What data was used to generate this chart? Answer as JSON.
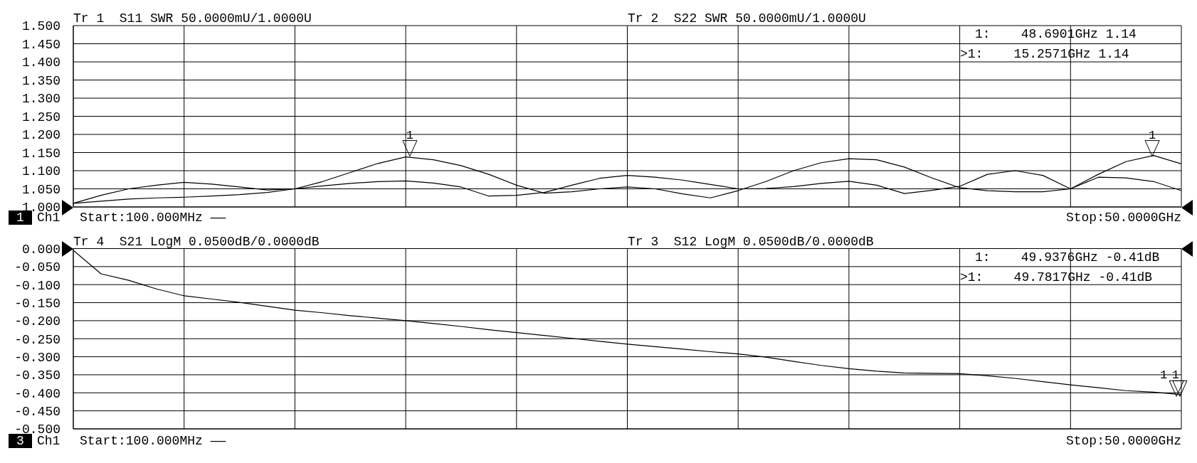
{
  "chart_data": [
    {
      "type": "line",
      "title": "Tr 1  S11 SWR 50.0000mU/1.0000U",
      "subtitle": "Tr 2  S22 SWR 50.0000mU/1.0000U",
      "categories": [
        null,
        null,
        null,
        null,
        null,
        null,
        null,
        null,
        null,
        null,
        null,
        null,
        null,
        null,
        null,
        null,
        null,
        null,
        null,
        null,
        null,
        null,
        null,
        null,
        null,
        null,
        null,
        null,
        null,
        null,
        null,
        null,
        null,
        null,
        null,
        null,
        null,
        null,
        null,
        null,
        null
      ],
      "series": [
        {
          "color": "#000000",
          "values": [
            1.01,
            1.016,
            1.022,
            1.025,
            1.027,
            1.03,
            1.034,
            1.04,
            1.05,
            1.07,
            1.095,
            1.12,
            1.138,
            1.13,
            1.114,
            1.09,
            1.06,
            1.038,
            1.042,
            1.05,
            1.055,
            1.05,
            1.036,
            1.025,
            1.045,
            1.07,
            1.1,
            1.122,
            1.133,
            1.13,
            1.11,
            1.08,
            1.053,
            1.045,
            1.042,
            1.042,
            1.05,
            1.09,
            1.125,
            1.142,
            1.119
          ]
        },
        {
          "color": "#000000",
          "values": [
            1.01,
            1.032,
            1.05,
            1.06,
            1.068,
            1.063,
            1.055,
            1.047,
            1.05,
            1.058,
            1.065,
            1.07,
            1.072,
            1.066,
            1.055,
            1.03,
            1.032,
            1.04,
            1.06,
            1.079,
            1.087,
            1.082,
            1.074,
            1.062,
            1.05,
            1.051,
            1.056,
            1.065,
            1.071,
            1.06,
            1.037,
            1.046,
            1.057,
            1.09,
            1.1,
            1.087,
            1.05,
            1.082,
            1.08,
            1.07,
            1.045
          ]
        }
      ],
      "ylim": [
        1.0,
        1.5
      ],
      "yticks": [
        {
          "value": 1.0,
          "label": "1.000"
        },
        {
          "value": 1.05,
          "label": "1.050"
        },
        {
          "value": 1.1,
          "label": "1.100"
        },
        {
          "value": 1.15,
          "label": "1.150"
        },
        {
          "value": 1.2,
          "label": "1.200"
        },
        {
          "value": 1.25,
          "label": "1.250"
        },
        {
          "value": 1.3,
          "label": "1.300"
        },
        {
          "value": 1.35,
          "label": "1.350"
        },
        {
          "value": 1.4,
          "label": "1.400"
        },
        {
          "value": 1.45,
          "label": "1.450"
        },
        {
          "value": 1.5,
          "label": "1.500"
        }
      ],
      "tick_labels": "y",
      "grid": true,
      "annotations": [
        "1",
        "Ch1",
        "Start:100.000MHz ——",
        "Stop:50.0000GHz",
        "1:    48.6901GHz 1.14",
        ">1:    15.2571GHz 1.14",
        {
          "text": "1",
          "y": 1.14
        },
        {
          "text": "1",
          "y": 1.14
        }
      ]
    },
    {
      "type": "line",
      "title": "Tr 4  S21 LogM 0.0500dB/0.0000dB",
      "subtitle": "Tr 3  S12 LogM 0.0500dB/0.0000dB",
      "categories": [
        null,
        null,
        null,
        null,
        null,
        null,
        null,
        null,
        null,
        null,
        null,
        null,
        null,
        null,
        null,
        null,
        null,
        null,
        null,
        null,
        null,
        null,
        null,
        null,
        null,
        null,
        null,
        null,
        null,
        null,
        null,
        null,
        null,
        null,
        null,
        null,
        null,
        null,
        null,
        null,
        null
      ],
      "series": [
        {
          "color": "#000000",
          "values": [
            -0.005,
            -0.07,
            -0.088,
            -0.112,
            -0.131,
            -0.14,
            -0.149,
            -0.16,
            -0.171,
            -0.178,
            -0.186,
            -0.193,
            -0.2,
            -0.208,
            -0.216,
            -0.225,
            -0.233,
            -0.241,
            -0.249,
            -0.257,
            -0.265,
            -0.272,
            -0.279,
            -0.286,
            -0.292,
            -0.301,
            -0.313,
            -0.324,
            -0.333,
            -0.34,
            -0.345,
            -0.346,
            -0.347,
            -0.353,
            -0.36,
            -0.369,
            -0.378,
            -0.386,
            -0.394,
            -0.398,
            -0.405
          ]
        }
      ],
      "ylim": [
        -0.5,
        0
      ],
      "yticks": [
        {
          "value": 0,
          "label": "0.000"
        },
        {
          "value": -0.05,
          "label": "-0.050"
        },
        {
          "value": -0.1,
          "label": "-0.100"
        },
        {
          "value": -0.15,
          "label": "-0.150"
        },
        {
          "value": -0.2,
          "label": "-0.200"
        },
        {
          "value": -0.25,
          "label": "-0.250"
        },
        {
          "value": -0.3,
          "label": "-0.300"
        },
        {
          "value": -0.35,
          "label": "-0.350"
        },
        {
          "value": -0.4,
          "label": "-0.400"
        },
        {
          "value": -0.45,
          "label": "-0.450"
        },
        {
          "value": -0.5,
          "label": "-0.500"
        }
      ],
      "tick_labels": "y",
      "grid": true,
      "annotations": [
        "3",
        "Ch1",
        "Start:100.000MHz ——",
        "Stop:50.0000GHz",
        "1:    49.9376GHz -0.41dB",
        ">1:    49.7817GHz -0.41dB",
        {
          "text": "1",
          "y": -0.41
        },
        {
          "text": "1",
          "y": -0.41
        }
      ]
    }
  ]
}
